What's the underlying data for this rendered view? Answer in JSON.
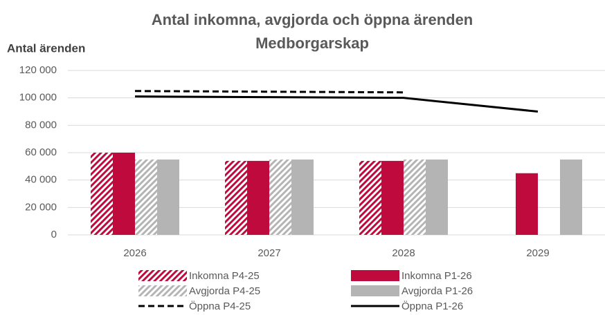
{
  "chart_data": {
    "type": "bar",
    "title": [
      "Antal inkomna, avgjorda och öppna ärenden",
      "Medborgarskap"
    ],
    "ylabel": "Antal ärenden",
    "categories": [
      "2026",
      "2027",
      "2028",
      "2029"
    ],
    "ylim": [
      0,
      120000
    ],
    "yticks": [
      0,
      {
        "value": 20000,
        "label": "20 000"
      },
      {
        "value": 40000,
        "label": "40 000"
      },
      {
        "value": 60000,
        "label": "60 000"
      },
      {
        "value": 80000,
        "label": "80 000"
      },
      {
        "value": 100000,
        "label": "100 000"
      },
      {
        "value": 120000,
        "label": "120 000"
      }
    ],
    "grid": true,
    "series": [
      {
        "name": "Inkomna P4-25",
        "kind": "bar",
        "pattern": "hatch",
        "color": "#be0a3c",
        "values": [
          60000,
          54000,
          54000,
          null
        ]
      },
      {
        "name": "Inkomna P1-26",
        "kind": "bar",
        "color": "#be0a3c",
        "values": [
          60000,
          54000,
          54000,
          45000
        ]
      },
      {
        "name": "Avgjorda P4-25",
        "kind": "bar",
        "pattern": "hatch",
        "color": "#b4b4b4",
        "values": [
          55000,
          55000,
          55000,
          null
        ]
      },
      {
        "name": "Avgjorda P1-26",
        "kind": "bar",
        "color": "#b4b4b4",
        "values": [
          55000,
          55000,
          55000,
          55000
        ]
      },
      {
        "name": "Öppna P4-25",
        "kind": "line",
        "dash": true,
        "color": "#000000",
        "values": [
          105000,
          104500,
          104000,
          null
        ]
      },
      {
        "name": "Öppna P1-26",
        "kind": "line",
        "color": "#000000",
        "values": [
          101000,
          100500,
          100000,
          90000
        ]
      }
    ]
  }
}
